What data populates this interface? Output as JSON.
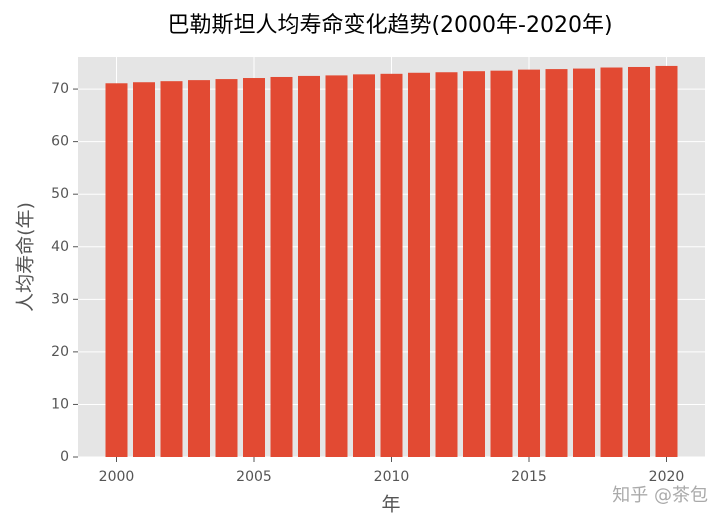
{
  "chart_data": {
    "type": "bar",
    "title": "巴勒斯坦人均寿命变化趋势(2000年-2020年)",
    "x_label": "年",
    "y_label": "人均寿命(年)",
    "watermark": "知乎 @茶包",
    "x": [
      2000,
      2001,
      2002,
      2003,
      2004,
      2005,
      2006,
      2007,
      2008,
      2009,
      2010,
      2011,
      2012,
      2013,
      2014,
      2015,
      2016,
      2017,
      2018,
      2019,
      2020
    ],
    "values": [
      71.1,
      71.3,
      71.5,
      71.7,
      71.9,
      72.1,
      72.3,
      72.5,
      72.6,
      72.8,
      72.9,
      73.1,
      73.2,
      73.4,
      73.5,
      73.7,
      73.8,
      73.9,
      74.1,
      74.2,
      74.4
    ],
    "color": "#e24a33",
    "xlim": [
      1998.6,
      2021.4
    ],
    "xticks": [
      2000,
      2005,
      2010,
      2015,
      2020
    ],
    "ylim": [
      0,
      76.1
    ],
    "yticks": [
      0,
      10,
      20,
      30,
      40,
      50,
      60,
      70
    ],
    "grid": true
  }
}
